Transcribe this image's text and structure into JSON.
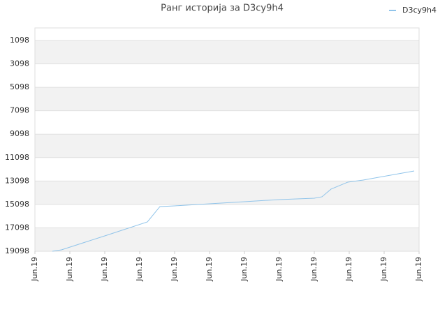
{
  "chart_data": {
    "type": "line",
    "title": "Ранг историја за D3cy9h4",
    "inverted": true,
    "grid": true,
    "legend": "top-right",
    "xlim": [
      0,
      11
    ],
    "xticks": [
      {
        "value": 0,
        "label": "Jun.19"
      },
      {
        "value": 1,
        "label": "Jun.19"
      },
      {
        "value": 2,
        "label": "Jun.19"
      },
      {
        "value": 3,
        "label": "Jun.19"
      },
      {
        "value": 4,
        "label": "Jun.19"
      },
      {
        "value": 5,
        "label": "Jun.19"
      },
      {
        "value": 6,
        "label": "Jun.19"
      },
      {
        "value": 7,
        "label": "Jun.19"
      },
      {
        "value": 8,
        "label": "Jun.19"
      },
      {
        "value": 9,
        "label": "Jun.19"
      },
      {
        "value": 10,
        "label": "Jun.19"
      },
      {
        "value": 11,
        "label": "Jun.19"
      }
    ],
    "ylim": [
      27,
      19098
    ],
    "yticks": [
      1098,
      3098,
      5098,
      7098,
      9098,
      11098,
      13098,
      15098,
      17098,
      19098
    ],
    "x": [
      0.5,
      0.76,
      2.0,
      3.22,
      3.58,
      4.0,
      5.0,
      6.0,
      7.0,
      8.0,
      8.22,
      8.48,
      8.96,
      9.4,
      10.86
    ],
    "series": [
      {
        "name": "D3cy9h4",
        "color": "#90c4ea",
        "values": [
          19098,
          18977,
          17785,
          16593,
          15281,
          15222,
          15043,
          14864,
          14686,
          14566,
          14447,
          13792,
          13196,
          13017,
          12242
        ]
      }
    ]
  }
}
